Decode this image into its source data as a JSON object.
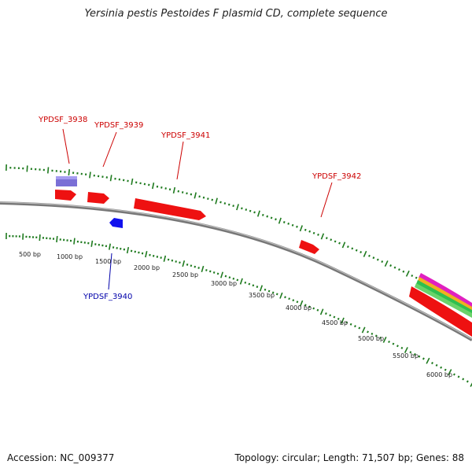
{
  "title": "Yersinia pestis Pestoides F plasmid CD, complete sequence",
  "footer": {
    "accession": "Accession: NC_009377",
    "summary": "Topology: circular; Length: 71,507 bp; Genes: 88"
  },
  "colors": {
    "backbone": "#8c8c8c",
    "ticks": "#1e7a1e",
    "forward_gene": "#ee1111",
    "reverse_gene": "#1111ee",
    "rna_feature": "#7a6fd6",
    "callout_red": "#cc0000",
    "callout_blue": "#0000aa"
  },
  "scale_labels": [
    "500 bp",
    "1000 bp",
    "1500 bp",
    "2000 bp",
    "2500 bp",
    "3000 bp",
    "3500 bp",
    "4000 bp",
    "4500 bp",
    "5000 bp",
    "5500 bp",
    "6000 bp"
  ],
  "gene_labels": [
    {
      "text": "YPDSF_3938",
      "strand": "forward"
    },
    {
      "text": "YPDSF_3939",
      "strand": "forward"
    },
    {
      "text": "YPDSF_3941",
      "strand": "forward"
    },
    {
      "text": "YPDSF_3942",
      "strand": "forward"
    },
    {
      "text": "YPDSF_3940",
      "strand": "reverse"
    }
  ]
}
